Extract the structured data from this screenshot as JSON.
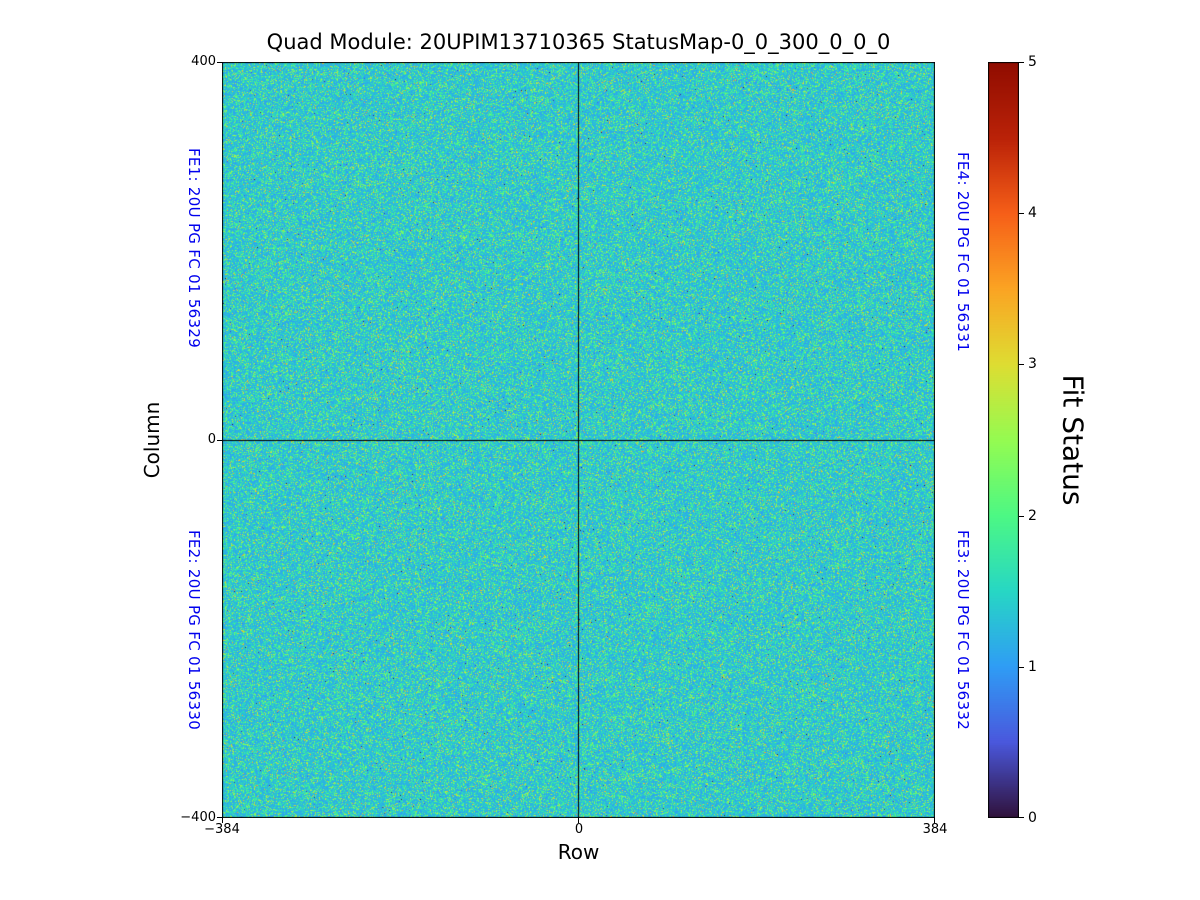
{
  "chart_data": {
    "type": "heatmap",
    "title": "Quad Module: 20UPIM13710365 StatusMap-0_0_300_0_0_0",
    "xlabel": "Row",
    "ylabel": "Column",
    "xlim": [
      -384,
      384
    ],
    "ylim": [
      -400,
      400
    ],
    "xtick_labels": [
      "−384",
      "0",
      "384"
    ],
    "ytick_labels": [
      "400",
      "0",
      "−400"
    ],
    "grid": false,
    "dominant_value": 1,
    "value_description": "Per-pixel fit status noise: mostly ~1 (light blue) with dense cyan/green speckle ~1.5-2.5, sparse yellow ~3, rare dark pixels; black crosshair lines at Row=0 and Column=0 dividing four front-end quadrants",
    "quadrants": [
      {
        "name": "FE1",
        "label": "FE1: 20U PG FC 01 56329",
        "position": "top-left"
      },
      {
        "name": "FE2",
        "label": "FE2: 20U PG FC 01 56330",
        "position": "bottom-left"
      },
      {
        "name": "FE3",
        "label": "FE3: 20U PG FC 01 56332",
        "position": "bottom-right"
      },
      {
        "name": "FE4",
        "label": "FE4: 20U PG FC 01 56331",
        "position": "top-right"
      }
    ],
    "annotation_color": "#0000ee",
    "axis_color": "#000000",
    "background": "#ffffff",
    "colorbar": {
      "label": "Fit Status",
      "min": 0,
      "max": 5,
      "tick_labels": [
        "0",
        "1",
        "2",
        "3",
        "4",
        "5"
      ],
      "colormap": "turbo",
      "stops": [
        [
          0.0,
          "#30123b"
        ],
        [
          0.1,
          "#4a58dd"
        ],
        [
          0.2,
          "#2f9df5"
        ],
        [
          0.3,
          "#27d7c4"
        ],
        [
          0.4,
          "#4df884"
        ],
        [
          0.5,
          "#95fb51"
        ],
        [
          0.6,
          "#dedd32"
        ],
        [
          0.7,
          "#fba423"
        ],
        [
          0.8,
          "#f65f18"
        ],
        [
          0.9,
          "#ba2208"
        ],
        [
          1.0,
          "#900c00"
        ]
      ],
      "noise_distribution": [
        {
          "weight": 0.6,
          "range": [
            1.0,
            1.4
          ]
        },
        {
          "weight": 0.22,
          "range": [
            1.4,
            1.9
          ]
        },
        {
          "weight": 0.12,
          "range": [
            1.9,
            2.4
          ]
        },
        {
          "weight": 0.045,
          "range": [
            2.4,
            3.0
          ]
        },
        {
          "weight": 0.012,
          "range": [
            3.0,
            3.6
          ]
        },
        {
          "weight": 0.003,
          "range": [
            0.0,
            0.9
          ]
        }
      ]
    }
  }
}
